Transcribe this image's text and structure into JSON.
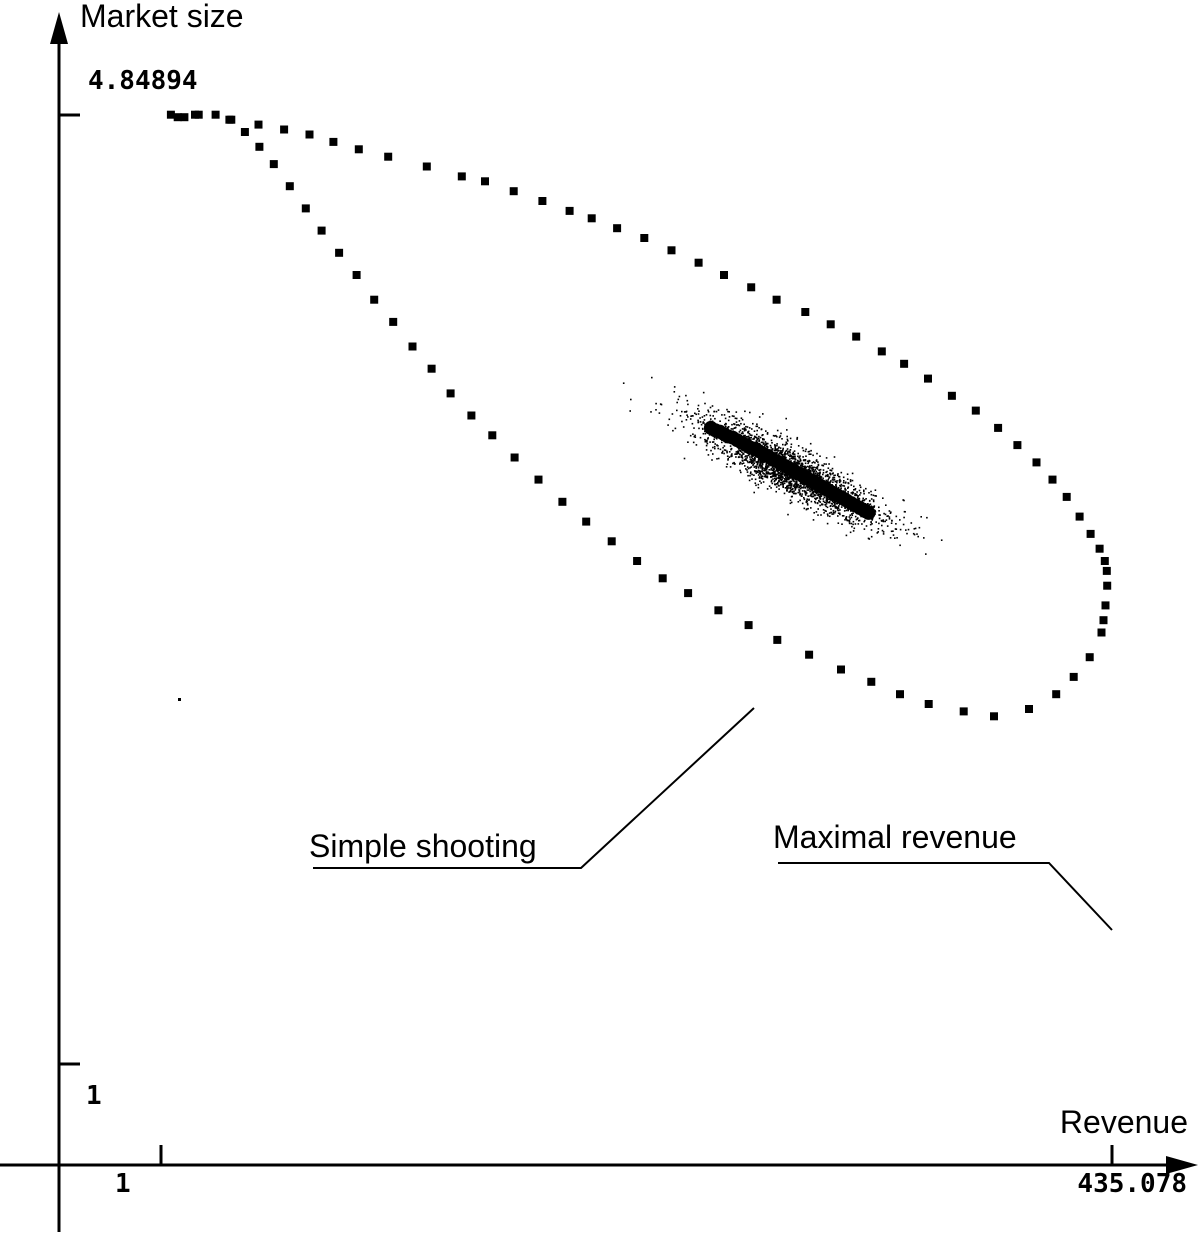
{
  "chart_data": {
    "type": "scatter",
    "title": "",
    "xlabel": "Revenue",
    "ylabel": "Market size",
    "xlim": [
      1,
      435.078
    ],
    "ylim": [
      1,
      4.84894
    ],
    "x_tick_labels": [
      "1",
      "435.078"
    ],
    "y_tick_labels": [
      "1",
      "4.84894"
    ],
    "grid": false,
    "legend": "none",
    "series": [
      {
        "kind": "boundary",
        "description_points_visible": true,
        "points": [
          [
            5.5,
            4.85
          ],
          [
            8.6,
            4.84
          ],
          [
            16.5,
            4.85
          ],
          [
            33.1,
            4.83
          ],
          [
            45.5,
            4.81
          ],
          [
            57.2,
            4.79
          ],
          [
            68.8,
            4.77
          ],
          [
            79.7,
            4.74
          ],
          [
            91.3,
            4.71
          ],
          [
            104.7,
            4.68
          ],
          [
            122.3,
            4.64
          ],
          [
            138.3,
            4.6
          ],
          [
            148.9,
            4.58
          ],
          [
            162.0,
            4.54
          ],
          [
            175.1,
            4.5
          ],
          [
            187.5,
            4.46
          ],
          [
            197.6,
            4.43
          ],
          [
            209.2,
            4.39
          ],
          [
            221.6,
            4.35
          ],
          [
            234.0,
            4.3
          ],
          [
            246.4,
            4.25
          ],
          [
            258.0,
            4.2
          ],
          [
            270.4,
            4.15
          ],
          [
            282.0,
            4.1
          ],
          [
            295.1,
            4.05
          ],
          [
            306.7,
            4.0
          ],
          [
            318.3,
            3.95
          ],
          [
            330.0,
            3.89
          ],
          [
            340.2,
            3.84
          ],
          [
            351.1,
            3.78
          ],
          [
            362.0,
            3.71
          ],
          [
            372.9,
            3.65
          ],
          [
            383.1,
            3.58
          ],
          [
            391.9,
            3.51
          ],
          [
            400.6,
            3.44
          ],
          [
            407.9,
            3.37
          ],
          [
            414.4,
            3.3
          ],
          [
            420.3,
            3.22
          ],
          [
            425.3,
            3.15
          ],
          [
            429.4,
            3.09
          ],
          [
            431.8,
            3.04
          ],
          [
            432.7,
            3.0
          ],
          [
            432.9,
            2.94
          ],
          [
            432.1,
            2.86
          ],
          [
            431.2,
            2.8
          ],
          [
            430.3,
            2.75
          ],
          [
            424.9,
            2.65
          ],
          [
            417.6,
            2.57
          ],
          [
            409.6,
            2.5
          ],
          [
            397.2,
            2.44
          ],
          [
            381.2,
            2.41
          ],
          [
            367.4,
            2.43
          ],
          [
            351.4,
            2.46
          ],
          [
            338.3,
            2.5
          ],
          [
            325.2,
            2.55
          ],
          [
            311.4,
            2.6
          ],
          [
            296.8,
            2.66
          ],
          [
            282.3,
            2.72
          ],
          [
            269.2,
            2.78
          ],
          [
            255.4,
            2.84
          ],
          [
            241.6,
            2.91
          ],
          [
            230.0,
            2.97
          ],
          [
            218.3,
            3.04
          ],
          [
            206.7,
            3.12
          ],
          [
            195.1,
            3.2
          ],
          [
            184.2,
            3.28
          ],
          [
            173.3,
            3.37
          ],
          [
            162.4,
            3.46
          ],
          [
            152.2,
            3.55
          ],
          [
            142.7,
            3.63
          ],
          [
            133.2,
            3.72
          ],
          [
            124.5,
            3.82
          ],
          [
            115.8,
            3.91
          ],
          [
            107.0,
            4.01
          ],
          [
            98.3,
            4.1
          ],
          [
            90.3,
            4.2
          ],
          [
            82.3,
            4.29
          ],
          [
            74.3,
            4.38
          ],
          [
            67.1,
            4.47
          ],
          [
            59.8,
            4.56
          ],
          [
            52.5,
            4.65
          ],
          [
            45.9,
            4.72
          ],
          [
            39.3,
            4.78
          ],
          [
            32.2,
            4.83
          ],
          [
            25.9,
            4.85
          ],
          [
            18.2,
            4.85
          ],
          [
            11.7,
            4.84
          ]
        ]
      },
      {
        "kind": "cloud",
        "points": [
          [
            252.0,
            3.58
          ],
          [
            254.0,
            3.57
          ],
          [
            256.0,
            3.565
          ],
          [
            258.0,
            3.555
          ],
          [
            260.0,
            3.545
          ],
          [
            262.0,
            3.54
          ],
          [
            264.0,
            3.53
          ],
          [
            266.0,
            3.52
          ],
          [
            268.0,
            3.51
          ],
          [
            270.0,
            3.5
          ],
          [
            272.0,
            3.495
          ],
          [
            274.0,
            3.485
          ],
          [
            276.0,
            3.475
          ],
          [
            278.0,
            3.465
          ],
          [
            280.0,
            3.455
          ],
          [
            282.0,
            3.445
          ],
          [
            284.0,
            3.435
          ],
          [
            286.0,
            3.425
          ],
          [
            288.0,
            3.415
          ],
          [
            290.0,
            3.405
          ],
          [
            292.0,
            3.395
          ],
          [
            294.0,
            3.385
          ],
          [
            296.0,
            3.375
          ],
          [
            298.0,
            3.365
          ],
          [
            300.0,
            3.355
          ],
          [
            302.0,
            3.345
          ],
          [
            304.0,
            3.335
          ],
          [
            306.0,
            3.325
          ],
          [
            308.0,
            3.315
          ],
          [
            310.0,
            3.305
          ],
          [
            312.0,
            3.295
          ],
          [
            314.0,
            3.285
          ],
          [
            316.0,
            3.275
          ],
          [
            318.0,
            3.265
          ],
          [
            320.0,
            3.255
          ],
          [
            322.0,
            3.245
          ],
          [
            324.0,
            3.235
          ]
        ]
      }
    ],
    "annotations": [
      {
        "text": "Simple shooting",
        "target": [
          284.0,
          3.41
        ]
      },
      {
        "text": "Maximal revenue",
        "target": [
          432.9,
          2.94
        ]
      }
    ]
  }
}
